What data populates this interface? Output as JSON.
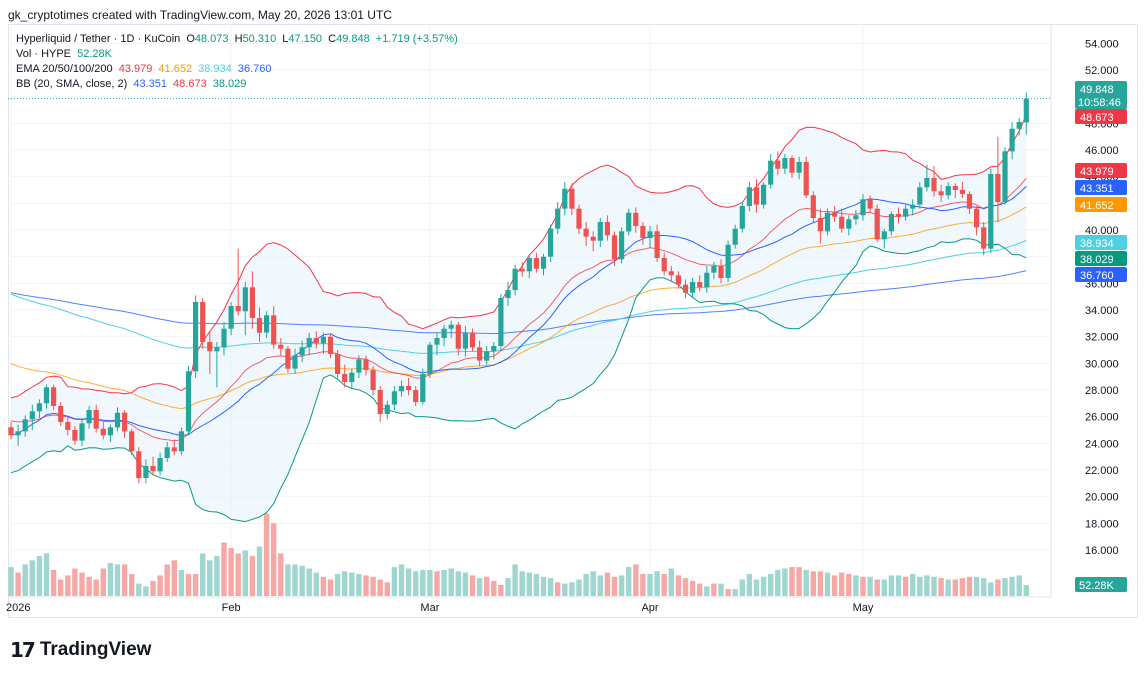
{
  "header": {
    "credit": "gk_cryptotimes created with TradingView.com, May 20, 2026 13:01 UTC"
  },
  "legend": {
    "symbol": "Hyperliquid / Tether · 1D · KuCoin",
    "o_label": "O",
    "o": "48.073",
    "h_label": "H",
    "h": "50.310",
    "l_label": "L",
    "l": "47.150",
    "c_label": "C",
    "c": "49.848",
    "change": "+1.719 (+3.57%)",
    "vol_label": "Vol · HYPE",
    "vol": "52.28K",
    "ema_label": "EMA 20/50/100/200",
    "ema20": "43.979",
    "ema50": "41.652",
    "ema100": "38.934",
    "ema200": "36.760",
    "bb_label": "BB (20, SMA, close, 2)",
    "bb_basis": "43.351",
    "bb_upper": "48.673",
    "bb_lower": "38.029"
  },
  "brand": {
    "logo_mark": "17",
    "name": "TradingView"
  },
  "colors": {
    "up": "#26a69a",
    "down": "#ef5350",
    "vol_up": "#9fd6d0",
    "vol_down": "#f5a8a6",
    "ema20": "#f23645",
    "ema50": "#ff9800",
    "ema100": "#4dd0e1",
    "ema200": "#2962ff",
    "bb_basis": "#2962ff",
    "bb_upper": "#f23645",
    "bb_lower": "#089981",
    "bb_fill": "#e3f2fd"
  },
  "chart_data": {
    "type": "candlestick",
    "title": "Hyperliquid / Tether · 1D · KuCoin",
    "y_ticks": [
      "54.000",
      "52.000",
      "50.000",
      "48.000",
      "46.000",
      "44.000",
      "42.000",
      "40.000",
      "38.000",
      "36.000",
      "34.000",
      "32.000",
      "30.000",
      "28.000",
      "26.000",
      "24.000",
      "22.000",
      "20.000",
      "18.000",
      "16.000"
    ],
    "ylim": [
      14.2,
      55.0
    ],
    "x_ticks": [
      {
        "label": "2026",
        "day": 0
      },
      {
        "label": "Feb",
        "day": 31
      },
      {
        "label": "Mar",
        "day": 59
      },
      {
        "label": "Apr",
        "day": 90
      },
      {
        "label": "May",
        "day": 120
      }
    ],
    "price_badges": [
      {
        "label": "49.848",
        "sub": "10:58:46",
        "color": "#26a69a",
        "value": 49.85
      },
      {
        "label": "48.673",
        "color": "#f23645",
        "value": 48.67
      },
      {
        "label": "43.979",
        "color": "#f23645",
        "value": 43.98
      },
      {
        "label": "43.351",
        "color": "#2962ff",
        "value": 43.35
      },
      {
        "label": "41.652",
        "color": "#ff9800",
        "value": 41.65
      },
      {
        "label": "38.934",
        "color": "#4dd0e1",
        "value": 38.93
      },
      {
        "label": "38.029",
        "color": "#089981",
        "value": 38.03
      },
      {
        "label": "36.760",
        "color": "#2962ff",
        "value": 36.76
      }
    ],
    "volume_badge": "52.28K",
    "last_close": 49.85,
    "candles": [
      [
        25.2,
        25.6,
        24.3,
        24.6
      ],
      [
        24.6,
        25.4,
        23.8,
        24.9
      ],
      [
        24.9,
        26.1,
        24.5,
        25.8
      ],
      [
        25.8,
        26.9,
        25.0,
        26.4
      ],
      [
        26.4,
        27.3,
        25.9,
        27.0
      ],
      [
        27.0,
        28.4,
        26.6,
        28.2
      ],
      [
        28.2,
        28.4,
        26.5,
        26.8
      ],
      [
        26.8,
        27.1,
        25.3,
        25.6
      ],
      [
        25.6,
        26.0,
        24.6,
        25.0
      ],
      [
        25.0,
        25.3,
        23.9,
        24.2
      ],
      [
        24.2,
        25.8,
        23.8,
        25.5
      ],
      [
        25.5,
        26.8,
        25.1,
        26.5
      ],
      [
        26.5,
        26.9,
        24.8,
        25.1
      ],
      [
        25.1,
        25.6,
        24.3,
        24.6
      ],
      [
        24.6,
        25.4,
        24.1,
        25.2
      ],
      [
        25.2,
        26.7,
        24.9,
        26.3
      ],
      [
        26.3,
        26.5,
        24.4,
        24.9
      ],
      [
        24.9,
        25.1,
        23.1,
        23.4
      ],
      [
        23.4,
        23.7,
        21.0,
        21.4
      ],
      [
        21.4,
        22.8,
        21.0,
        22.3
      ],
      [
        22.3,
        23.0,
        21.6,
        21.9
      ],
      [
        21.9,
        23.3,
        21.6,
        22.9
      ],
      [
        22.9,
        24.1,
        22.6,
        23.7
      ],
      [
        23.7,
        24.3,
        23.1,
        23.4
      ],
      [
        23.4,
        25.2,
        23.1,
        24.9
      ],
      [
        24.9,
        29.8,
        24.6,
        29.4
      ],
      [
        29.4,
        35.1,
        28.9,
        34.6
      ],
      [
        34.6,
        34.9,
        31.1,
        31.6
      ],
      [
        31.6,
        32.4,
        29.2,
        30.9
      ],
      [
        30.9,
        31.6,
        28.2,
        31.2
      ],
      [
        31.2,
        33.1,
        30.6,
        32.6
      ],
      [
        32.6,
        34.6,
        32.1,
        34.3
      ],
      [
        34.3,
        38.6,
        33.6,
        33.9
      ],
      [
        33.9,
        36.1,
        32.1,
        35.7
      ],
      [
        35.7,
        36.9,
        32.6,
        33.4
      ],
      [
        33.4,
        34.2,
        31.6,
        32.3
      ],
      [
        32.3,
        33.9,
        31.9,
        33.6
      ],
      [
        33.6,
        34.3,
        31.1,
        31.4
      ],
      [
        31.4,
        31.9,
        30.6,
        31.1
      ],
      [
        31.1,
        31.3,
        29.3,
        29.6
      ],
      [
        29.6,
        31.1,
        29.2,
        30.6
      ],
      [
        30.6,
        31.7,
        30.1,
        31.2
      ],
      [
        31.2,
        32.3,
        30.6,
        31.9
      ],
      [
        31.9,
        32.4,
        31.1,
        31.5
      ],
      [
        31.5,
        32.3,
        30.7,
        32.0
      ],
      [
        32.0,
        32.2,
        30.4,
        30.7
      ],
      [
        30.7,
        31.0,
        28.9,
        29.2
      ],
      [
        29.2,
        29.9,
        28.2,
        28.6
      ],
      [
        28.6,
        29.6,
        28.1,
        29.3
      ],
      [
        29.3,
        30.6,
        28.9,
        30.3
      ],
      [
        30.3,
        30.6,
        29.1,
        29.5
      ],
      [
        29.5,
        29.8,
        27.6,
        28.0
      ],
      [
        28.0,
        28.3,
        25.6,
        26.2
      ],
      [
        26.2,
        27.2,
        25.8,
        26.9
      ],
      [
        26.9,
        28.3,
        26.5,
        27.9
      ],
      [
        27.9,
        28.7,
        27.5,
        28.3
      ],
      [
        28.3,
        28.9,
        27.6,
        28.0
      ],
      [
        28.0,
        28.3,
        26.8,
        27.1
      ],
      [
        27.1,
        29.6,
        26.9,
        29.2
      ],
      [
        29.2,
        31.6,
        28.9,
        31.4
      ],
      [
        31.4,
        32.3,
        30.6,
        31.9
      ],
      [
        31.9,
        32.9,
        31.3,
        32.6
      ],
      [
        32.6,
        33.2,
        31.9,
        32.9
      ],
      [
        32.9,
        33.1,
        30.6,
        31.1
      ],
      [
        31.1,
        32.8,
        30.5,
        32.3
      ],
      [
        32.3,
        32.6,
        30.9,
        31.2
      ],
      [
        31.2,
        31.7,
        29.8,
        30.2
      ],
      [
        30.2,
        31.3,
        29.9,
        30.9
      ],
      [
        30.9,
        31.6,
        30.3,
        31.3
      ],
      [
        31.3,
        35.2,
        31.0,
        34.9
      ],
      [
        34.9,
        36.1,
        34.3,
        35.5
      ],
      [
        35.5,
        37.4,
        35.1,
        37.1
      ],
      [
        37.1,
        37.6,
        36.5,
        36.9
      ],
      [
        36.9,
        38.1,
        36.4,
        37.9
      ],
      [
        37.9,
        38.3,
        36.8,
        37.1
      ],
      [
        37.1,
        38.2,
        36.6,
        38.0
      ],
      [
        38.0,
        40.4,
        37.6,
        40.1
      ],
      [
        40.1,
        42.1,
        39.7,
        41.6
      ],
      [
        41.6,
        43.6,
        41.1,
        43.1
      ],
      [
        43.1,
        43.5,
        41.1,
        41.6
      ],
      [
        41.6,
        41.9,
        39.7,
        40.1
      ],
      [
        40.1,
        40.6,
        38.8,
        39.5
      ],
      [
        39.5,
        39.9,
        38.4,
        39.2
      ],
      [
        39.2,
        40.9,
        38.7,
        40.6
      ],
      [
        40.6,
        41.1,
        39.2,
        39.6
      ],
      [
        39.6,
        39.9,
        37.3,
        37.8
      ],
      [
        37.8,
        40.2,
        37.5,
        39.9
      ],
      [
        39.9,
        41.6,
        39.6,
        41.3
      ],
      [
        41.3,
        41.7,
        39.8,
        40.3
      ],
      [
        40.3,
        40.6,
        38.9,
        39.4
      ],
      [
        39.4,
        40.3,
        38.6,
        39.9
      ],
      [
        39.9,
        40.4,
        37.6,
        37.9
      ],
      [
        37.9,
        38.3,
        36.6,
        36.9
      ],
      [
        36.9,
        37.3,
        36.1,
        36.6
      ],
      [
        36.6,
        36.9,
        35.6,
        35.9
      ],
      [
        35.9,
        36.3,
        34.9,
        35.3
      ],
      [
        35.3,
        36.4,
        34.9,
        36.1
      ],
      [
        36.1,
        36.6,
        35.4,
        35.7
      ],
      [
        35.7,
        37.3,
        35.3,
        36.8
      ],
      [
        36.8,
        37.6,
        36.3,
        37.3
      ],
      [
        37.3,
        37.8,
        36.0,
        36.4
      ],
      [
        36.4,
        39.2,
        36.1,
        38.9
      ],
      [
        38.9,
        40.4,
        38.6,
        40.1
      ],
      [
        40.1,
        42.1,
        39.8,
        41.8
      ],
      [
        41.8,
        43.6,
        41.4,
        43.2
      ],
      [
        43.2,
        43.8,
        41.3,
        41.9
      ],
      [
        41.9,
        43.6,
        41.6,
        43.4
      ],
      [
        43.4,
        45.7,
        43.1,
        45.2
      ],
      [
        45.2,
        45.9,
        44.1,
        44.6
      ],
      [
        44.6,
        45.7,
        44.2,
        45.4
      ],
      [
        45.4,
        45.6,
        43.9,
        44.3
      ],
      [
        44.3,
        45.5,
        43.8,
        45.1
      ],
      [
        45.1,
        45.5,
        42.4,
        42.6
      ],
      [
        42.6,
        42.9,
        40.6,
        40.9
      ],
      [
        40.9,
        41.6,
        39.0,
        39.9
      ],
      [
        39.9,
        41.6,
        39.6,
        41.3
      ],
      [
        41.3,
        41.8,
        40.6,
        41.0
      ],
      [
        41.0,
        41.6,
        39.8,
        40.1
      ],
      [
        40.1,
        41.1,
        39.6,
        40.8
      ],
      [
        40.8,
        41.5,
        40.4,
        41.1
      ],
      [
        41.1,
        42.7,
        40.7,
        42.3
      ],
      [
        42.3,
        42.6,
        41.3,
        41.6
      ],
      [
        41.6,
        41.9,
        39.1,
        39.3
      ],
      [
        39.3,
        40.1,
        38.6,
        39.9
      ],
      [
        39.9,
        41.4,
        39.6,
        41.2
      ],
      [
        41.2,
        41.7,
        40.5,
        41.0
      ],
      [
        41.0,
        41.9,
        40.7,
        41.6
      ],
      [
        41.6,
        42.3,
        41.1,
        41.9
      ],
      [
        41.9,
        43.6,
        41.6,
        43.2
      ],
      [
        43.2,
        44.9,
        42.9,
        43.9
      ],
      [
        43.9,
        44.8,
        42.5,
        42.9
      ],
      [
        42.9,
        43.4,
        42.1,
        42.6
      ],
      [
        42.6,
        43.6,
        42.3,
        43.3
      ],
      [
        43.3,
        43.5,
        42.4,
        43.0
      ],
      [
        43.0,
        43.6,
        42.4,
        42.7
      ],
      [
        42.7,
        42.9,
        41.2,
        41.6
      ],
      [
        41.6,
        41.8,
        39.6,
        40.2
      ],
      [
        40.2,
        40.6,
        38.1,
        38.6
      ],
      [
        38.6,
        44.6,
        38.3,
        44.2
      ],
      [
        44.2,
        47.0,
        40.6,
        42.1
      ],
      [
        42.1,
        46.2,
        41.9,
        45.9
      ],
      [
        45.9,
        48.1,
        45.3,
        47.6
      ],
      [
        47.6,
        48.4,
        47.1,
        48.1
      ],
      [
        48.073,
        50.31,
        47.15,
        49.848
      ]
    ],
    "volume": [
      [
        1,
        2.1
      ],
      [
        0,
        1.7
      ],
      [
        1,
        2.3
      ],
      [
        1,
        2.6
      ],
      [
        1,
        2.9
      ],
      [
        1,
        3.1
      ],
      [
        0,
        1.9
      ],
      [
        0,
        1.2
      ],
      [
        0,
        1.5
      ],
      [
        0,
        2.0
      ],
      [
        0,
        1.7
      ],
      [
        0,
        1.4
      ],
      [
        0,
        1.2
      ],
      [
        0,
        2.0
      ],
      [
        1,
        2.4
      ],
      [
        1,
        2.3
      ],
      [
        0,
        2.3
      ],
      [
        0,
        1.6
      ],
      [
        1,
        0.9
      ],
      [
        1,
        0.7
      ],
      [
        0,
        1.1
      ],
      [
        0,
        1.5
      ],
      [
        0,
        2.3
      ],
      [
        0,
        2.6
      ],
      [
        1,
        1.9
      ],
      [
        0,
        1.6
      ],
      [
        0,
        1.6
      ],
      [
        1,
        3.1
      ],
      [
        1,
        2.6
      ],
      [
        1,
        2.9
      ],
      [
        0,
        3.9
      ],
      [
        0,
        3.5
      ],
      [
        0,
        3.1
      ],
      [
        1,
        3.3
      ],
      [
        0,
        2.9
      ],
      [
        1,
        3.6
      ],
      [
        0,
        6.0
      ],
      [
        0,
        5.3
      ],
      [
        0,
        3.1
      ],
      [
        1,
        2.3
      ],
      [
        1,
        2.3
      ],
      [
        1,
        2.2
      ],
      [
        1,
        2.0
      ],
      [
        1,
        1.7
      ],
      [
        0,
        1.4
      ],
      [
        0,
        1.2
      ],
      [
        1,
        1.6
      ],
      [
        1,
        1.8
      ],
      [
        1,
        1.7
      ],
      [
        1,
        1.6
      ],
      [
        0,
        1.5
      ],
      [
        0,
        1.4
      ],
      [
        0,
        1.2
      ],
      [
        0,
        1.0
      ],
      [
        1,
        2.1
      ],
      [
        1,
        2.3
      ],
      [
        1,
        2.0
      ],
      [
        1,
        1.8
      ],
      [
        1,
        1.9
      ],
      [
        1,
        1.9
      ],
      [
        0,
        1.8
      ],
      [
        1,
        1.9
      ],
      [
        1,
        2.0
      ],
      [
        1,
        1.8
      ],
      [
        1,
        1.7
      ],
      [
        0,
        1.5
      ],
      [
        1,
        1.3
      ],
      [
        0,
        1.4
      ],
      [
        0,
        1.1
      ],
      [
        0,
        0.8
      ],
      [
        1,
        1.3
      ],
      [
        1,
        2.3
      ],
      [
        1,
        1.8
      ],
      [
        1,
        1.7
      ],
      [
        1,
        1.6
      ],
      [
        1,
        1.4
      ],
      [
        1,
        1.3
      ],
      [
        0,
        1.0
      ],
      [
        1,
        0.9
      ],
      [
        1,
        1.0
      ],
      [
        1,
        1.2
      ],
      [
        1,
        1.6
      ],
      [
        1,
        1.8
      ],
      [
        1,
        1.5
      ],
      [
        0,
        1.7
      ],
      [
        0,
        1.4
      ],
      [
        1,
        1.5
      ],
      [
        1,
        2.1
      ],
      [
        0,
        2.3
      ],
      [
        0,
        1.6
      ],
      [
        1,
        1.6
      ],
      [
        1,
        1.8
      ],
      [
        0,
        1.6
      ],
      [
        1,
        2.0
      ],
      [
        0,
        1.5
      ],
      [
        0,
        1.3
      ],
      [
        0,
        1.1
      ],
      [
        0,
        0.9
      ],
      [
        1,
        0.7
      ],
      [
        0,
        0.9
      ],
      [
        1,
        0.9
      ],
      [
        0,
        0.5
      ],
      [
        1,
        0.5
      ],
      [
        1,
        1.2
      ],
      [
        1,
        1.6
      ],
      [
        1,
        1.2
      ],
      [
        1,
        1.4
      ],
      [
        1,
        1.6
      ],
      [
        1,
        1.9
      ],
      [
        1,
        2.0
      ],
      [
        0,
        2.1
      ],
      [
        0,
        2.1
      ],
      [
        1,
        1.9
      ],
      [
        0,
        1.8
      ],
      [
        0,
        1.8
      ],
      [
        1,
        1.7
      ],
      [
        0,
        1.5
      ],
      [
        0,
        1.7
      ],
      [
        0,
        1.6
      ],
      [
        1,
        1.5
      ],
      [
        0,
        1.4
      ],
      [
        1,
        1.4
      ],
      [
        0,
        1.2
      ],
      [
        1,
        1.2
      ],
      [
        1,
        1.5
      ],
      [
        1,
        1.5
      ],
      [
        0,
        1.4
      ],
      [
        1,
        1.6
      ],
      [
        1,
        1.4
      ],
      [
        1,
        1.5
      ],
      [
        1,
        1.4
      ],
      [
        0,
        1.3
      ],
      [
        1,
        1.2
      ],
      [
        0,
        1.2
      ],
      [
        0,
        1.3
      ],
      [
        0,
        1.4
      ],
      [
        1,
        1.4
      ],
      [
        1,
        1.3
      ],
      [
        1,
        1.0
      ],
      [
        0,
        1.2
      ],
      [
        1,
        1.3
      ],
      [
        1,
        1.4
      ],
      [
        1,
        1.5
      ],
      [
        1,
        0.8
      ]
    ]
  }
}
